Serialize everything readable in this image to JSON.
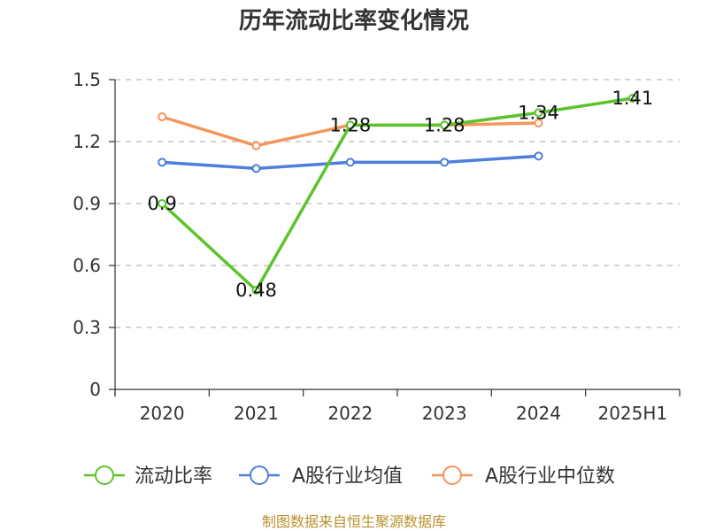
{
  "chart_data": {
    "type": "line",
    "title": "历年流动比率变化情况",
    "categories": [
      "2020",
      "2021",
      "2022",
      "2023",
      "2024",
      "2025H1"
    ],
    "ylim": [
      0,
      1.5
    ],
    "yticks": [
      "0",
      "0.3",
      "0.6",
      "0.9",
      "1.2",
      "1.5"
    ],
    "ytick_values": [
      0,
      0.3,
      0.6,
      0.9,
      1.2,
      1.5
    ],
    "grid": true,
    "legend_position": "bottom",
    "series": [
      {
        "name": "流动比率",
        "color": "#5cc32d",
        "values": [
          0.9,
          0.48,
          1.28,
          1.28,
          1.34,
          1.41
        ],
        "labels": [
          "0.9",
          "0.48",
          "1.28",
          "1.28",
          "1.34",
          "1.41"
        ]
      },
      {
        "name": "A股行业均值",
        "color": "#4f7fdc",
        "values": [
          1.1,
          1.07,
          1.1,
          1.1,
          1.13,
          null
        ]
      },
      {
        "name": "A股行业中位数",
        "color": "#f5955a",
        "values": [
          1.32,
          1.18,
          1.28,
          1.28,
          1.29,
          null
        ]
      }
    ],
    "source": "制图数据来自恒生聚源数据库"
  }
}
